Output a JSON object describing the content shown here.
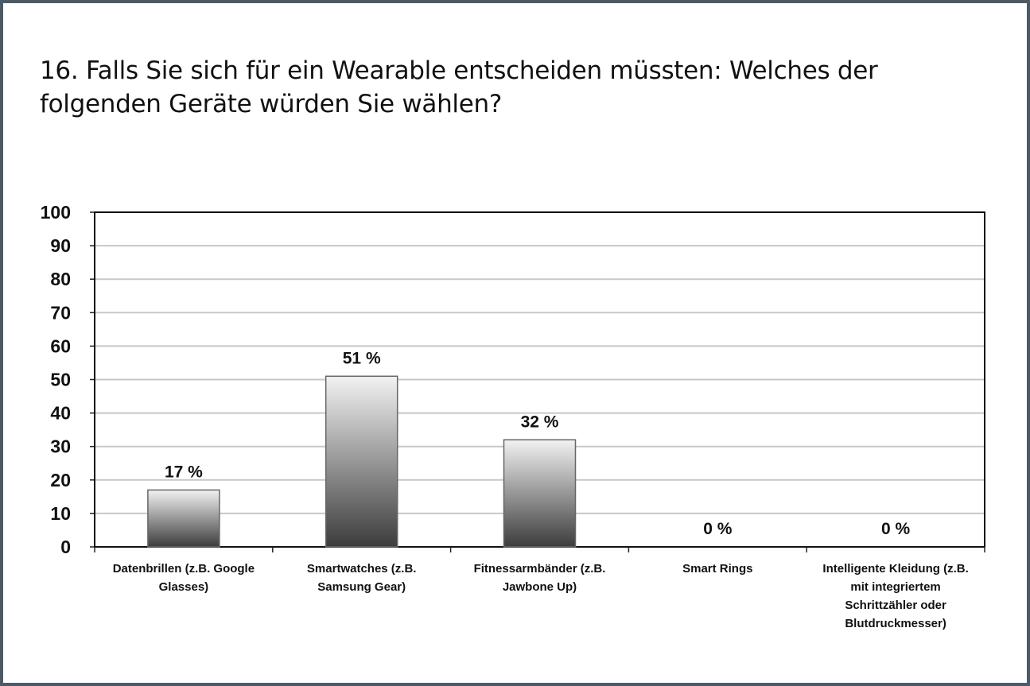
{
  "chart_data": {
    "type": "bar",
    "title": "16. Falls Sie sich für ein Wearable entscheiden müssten: Welches der folgenden Geräte würden Sie wählen?",
    "categories": [
      [
        "Datenbrillen (z.B. Google",
        "Glasses)"
      ],
      [
        "Smartwatches (z.B.",
        "Samsung Gear)"
      ],
      [
        "Fitnessarmbänder (z.B.",
        "Jawbone Up)"
      ],
      [
        "Smart Rings"
      ],
      [
        "Intelligente Kleidung (z.B.",
        "mit integriertem",
        "Schrittzähler oder",
        "Blutdruckmesser)"
      ]
    ],
    "values": [
      17,
      51,
      32,
      0,
      0
    ],
    "data_labels": [
      "17 %",
      "51 %",
      "32 %",
      "0 %",
      "0 %"
    ],
    "ylim": [
      0,
      100
    ],
    "yticks": [
      0,
      10,
      20,
      30,
      40,
      50,
      60,
      70,
      80,
      90,
      100
    ],
    "grid": true,
    "legend": "none",
    "colors": {
      "bar_top": "#f2f2f2",
      "bar_bottom": "#3c3c3c",
      "grid": "#c8c8c8",
      "border": "#4b5a66"
    }
  }
}
